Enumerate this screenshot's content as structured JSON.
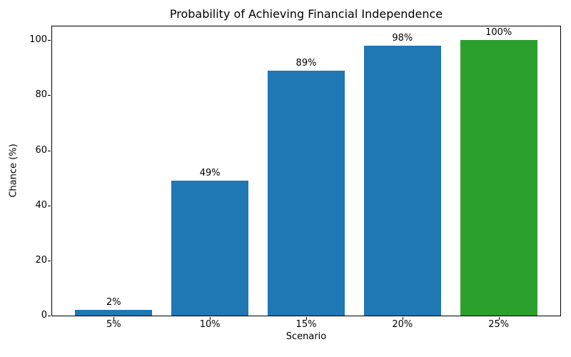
{
  "chart_data": {
    "type": "bar",
    "title": "Probability of Achieving Financial Independence",
    "xlabel": "Scenario",
    "ylabel": "Chance (%)",
    "categories": [
      "5%",
      "10%",
      "15%",
      "20%",
      "25%"
    ],
    "values": [
      2,
      49,
      89,
      98,
      100
    ],
    "bar_labels": [
      "2%",
      "49%",
      "89%",
      "98%",
      "100%"
    ],
    "bar_colors": [
      "#1f77b4",
      "#1f77b4",
      "#1f77b4",
      "#1f77b4",
      "#2ca02c"
    ],
    "yticks": [
      0,
      20,
      40,
      60,
      80,
      100
    ],
    "ylim": [
      0,
      105
    ],
    "grid": false,
    "legend_position": "none",
    "bar_width_ratio": 0.8,
    "spine_color": "#000000",
    "background_color": "#ffffff"
  }
}
